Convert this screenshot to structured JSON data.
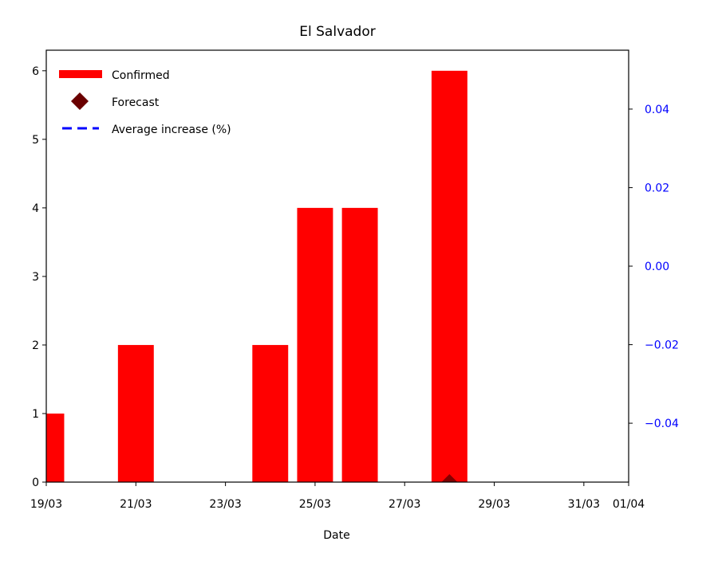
{
  "chart_data": {
    "type": "bar",
    "title": "El Salvador",
    "xlabel": "Date",
    "ylabel": "",
    "y2label": "",
    "x_ticks": [
      "19/03",
      "21/03",
      "23/03",
      "25/03",
      "27/03",
      "29/03",
      "31/03",
      "01/04"
    ],
    "x_range_days": [
      0,
      13
    ],
    "ylim": [
      0,
      6.3
    ],
    "y_ticks": [
      0,
      1,
      2,
      3,
      4,
      5,
      6
    ],
    "y2lim": [
      -0.055,
      0.055
    ],
    "y2_ticks": [
      "−0.04",
      "−0.02",
      "0.00",
      "0.02",
      "0.04"
    ],
    "y2_tick_values": [
      -0.04,
      -0.02,
      0.0,
      0.02,
      0.04
    ],
    "grid": false,
    "legend_position": "top-left",
    "series": [
      {
        "name": "Confirmed",
        "kind": "bar",
        "color": "#ff0000",
        "points": [
          {
            "date": "19/03",
            "value": 1
          },
          {
            "date": "21/03",
            "value": 2
          },
          {
            "date": "24/03",
            "value": 2
          },
          {
            "date": "25/03",
            "value": 4
          },
          {
            "date": "26/03",
            "value": 4
          },
          {
            "date": "28/03",
            "value": 6
          }
        ]
      },
      {
        "name": "Forecast",
        "kind": "marker",
        "marker": "diamond",
        "color": "#6b0000",
        "points": [
          {
            "date": "28/03",
            "value": 0
          }
        ]
      },
      {
        "name": "Average increase (%)",
        "kind": "line",
        "style": "dashed",
        "color": "#0000ff",
        "points": []
      }
    ]
  }
}
